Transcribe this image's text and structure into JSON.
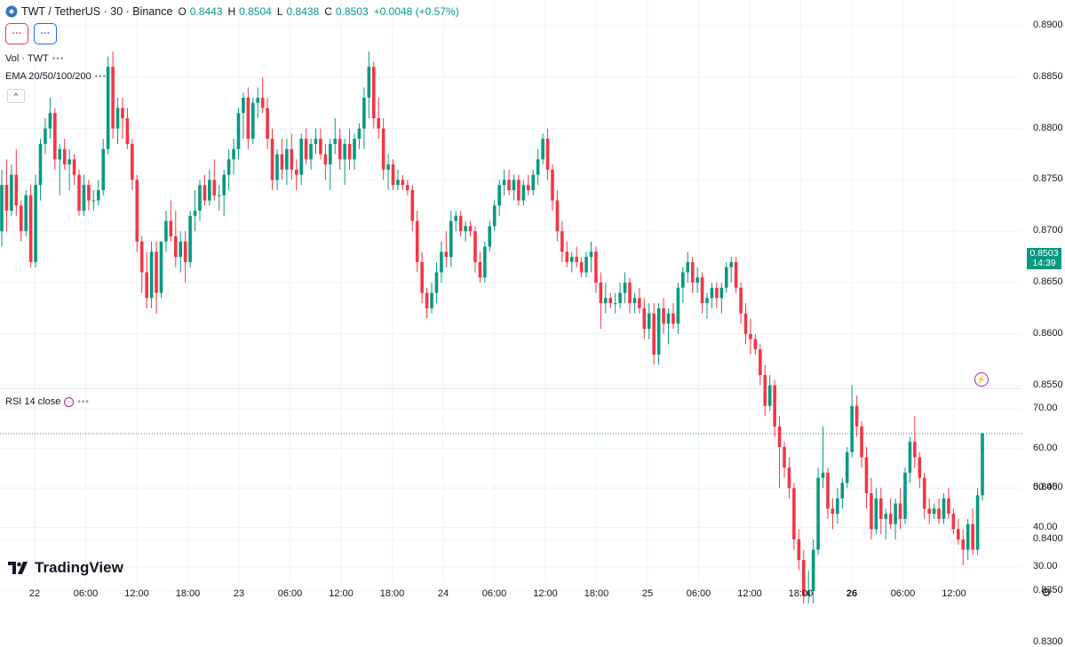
{
  "header": {
    "symbol": "TWT / TetherUS · 30 · Binance",
    "open_label": "O",
    "open": "0.8443",
    "high_label": "H",
    "high": "0.8504",
    "low_label": "L",
    "low": "0.8438",
    "close_label": "C",
    "close": "0.8503",
    "change": "+0.0048 (+0.57%)"
  },
  "buttons": {
    "red_label": "···",
    "blue_label": "···"
  },
  "indicators": {
    "volume": "Vol · TWT",
    "ema": "EMA 20/50/100/200",
    "rsi": "RSI 14 close",
    "collapse": "^"
  },
  "last_price": {
    "value": "0.8503",
    "countdown": "14:39"
  },
  "brand": "TradingView",
  "colors": {
    "up": "#089981",
    "down": "#f23645",
    "grid": "#f0f3fa"
  },
  "price_axis": [
    "0.8900",
    "0.8850",
    "0.8800",
    "0.8750",
    "0.8700",
    "0.8650",
    "0.8600",
    "0.8550",
    "0.8450",
    "0.8400",
    "0.8350",
    "0.8300"
  ],
  "rsi_axis": [
    "70.00",
    "60.00",
    "50.00",
    "40.00",
    "30.00"
  ],
  "time_axis": [
    "22",
    "06:00",
    "12:00",
    "18:00",
    "23",
    "06:00",
    "12:00",
    "18:00",
    "24",
    "06:00",
    "12:00",
    "18:00",
    "25",
    "06:00",
    "12:00",
    "18:00",
    "26",
    "06:00",
    "12:00"
  ],
  "chart_data": {
    "type": "candlestick",
    "interval": "30",
    "y_range": [
      0.8285,
      0.8925
    ],
    "rsi_range": [
      27,
      75
    ],
    "candles": [
      [
        0.87,
        0.876,
        0.8685,
        0.8745
      ],
      [
        0.8745,
        0.877,
        0.87,
        0.872
      ],
      [
        0.872,
        0.8765,
        0.8715,
        0.8755
      ],
      [
        0.8755,
        0.878,
        0.8715,
        0.8725
      ],
      [
        0.8725,
        0.873,
        0.869,
        0.87
      ],
      [
        0.87,
        0.874,
        0.8695,
        0.8735
      ],
      [
        0.8735,
        0.8745,
        0.8665,
        0.867
      ],
      [
        0.867,
        0.8755,
        0.8665,
        0.8745
      ],
      [
        0.8745,
        0.879,
        0.873,
        0.8785
      ],
      [
        0.8785,
        0.881,
        0.8775,
        0.88
      ],
      [
        0.88,
        0.883,
        0.879,
        0.8815
      ],
      [
        0.8815,
        0.882,
        0.876,
        0.877
      ],
      [
        0.877,
        0.8785,
        0.8735,
        0.878
      ],
      [
        0.878,
        0.879,
        0.876,
        0.8765
      ],
      [
        0.8765,
        0.878,
        0.874,
        0.877
      ],
      [
        0.877,
        0.8775,
        0.8745,
        0.8755
      ],
      [
        0.8755,
        0.876,
        0.8715,
        0.872
      ],
      [
        0.872,
        0.8755,
        0.8715,
        0.8745
      ],
      [
        0.8745,
        0.875,
        0.872,
        0.873
      ],
      [
        0.873,
        0.874,
        0.872,
        0.873
      ],
      [
        0.873,
        0.875,
        0.8725,
        0.874
      ],
      [
        0.874,
        0.879,
        0.8735,
        0.878
      ],
      [
        0.878,
        0.887,
        0.8775,
        0.886
      ],
      [
        0.886,
        0.8875,
        0.879,
        0.88
      ],
      [
        0.88,
        0.883,
        0.8785,
        0.882
      ],
      [
        0.882,
        0.883,
        0.879,
        0.881
      ],
      [
        0.881,
        0.882,
        0.878,
        0.8785
      ],
      [
        0.8785,
        0.879,
        0.874,
        0.875
      ],
      [
        0.875,
        0.8755,
        0.868,
        0.869
      ],
      [
        0.869,
        0.8695,
        0.864,
        0.866
      ],
      [
        0.866,
        0.868,
        0.8625,
        0.8635
      ],
      [
        0.8635,
        0.869,
        0.8625,
        0.868
      ],
      [
        0.868,
        0.869,
        0.862,
        0.864
      ],
      [
        0.864,
        0.869,
        0.8635,
        0.869
      ],
      [
        0.869,
        0.872,
        0.868,
        0.871
      ],
      [
        0.871,
        0.873,
        0.869,
        0.8695
      ],
      [
        0.8695,
        0.872,
        0.8665,
        0.8675
      ],
      [
        0.8675,
        0.87,
        0.866,
        0.869
      ],
      [
        0.869,
        0.87,
        0.865,
        0.867
      ],
      [
        0.867,
        0.872,
        0.8665,
        0.8715
      ],
      [
        0.8715,
        0.874,
        0.87,
        0.872
      ],
      [
        0.872,
        0.875,
        0.871,
        0.8745
      ],
      [
        0.8745,
        0.8755,
        0.8725,
        0.873
      ],
      [
        0.873,
        0.876,
        0.8725,
        0.875
      ],
      [
        0.875,
        0.877,
        0.873,
        0.8735
      ],
      [
        0.8735,
        0.8745,
        0.872,
        0.8735
      ],
      [
        0.8735,
        0.876,
        0.8715,
        0.8755
      ],
      [
        0.8755,
        0.878,
        0.874,
        0.877
      ],
      [
        0.877,
        0.879,
        0.8755,
        0.878
      ],
      [
        0.878,
        0.882,
        0.877,
        0.8815
      ],
      [
        0.8815,
        0.8835,
        0.879,
        0.883
      ],
      [
        0.883,
        0.884,
        0.878,
        0.879
      ],
      [
        0.879,
        0.883,
        0.8785,
        0.8825
      ],
      [
        0.8825,
        0.884,
        0.881,
        0.883
      ],
      [
        0.883,
        0.885,
        0.8815,
        0.882
      ],
      [
        0.882,
        0.883,
        0.878,
        0.879
      ],
      [
        0.879,
        0.88,
        0.874,
        0.875
      ],
      [
        0.875,
        0.878,
        0.874,
        0.8775
      ],
      [
        0.8775,
        0.879,
        0.875,
        0.876
      ],
      [
        0.876,
        0.879,
        0.8745,
        0.878
      ],
      [
        0.878,
        0.8795,
        0.875,
        0.876
      ],
      [
        0.876,
        0.877,
        0.874,
        0.8755
      ],
      [
        0.8755,
        0.8795,
        0.8745,
        0.879
      ],
      [
        0.879,
        0.88,
        0.8765,
        0.877
      ],
      [
        0.877,
        0.879,
        0.876,
        0.8785
      ],
      [
        0.8785,
        0.88,
        0.8775,
        0.879
      ],
      [
        0.879,
        0.88,
        0.877,
        0.8775
      ],
      [
        0.8775,
        0.8785,
        0.875,
        0.8765
      ],
      [
        0.8765,
        0.879,
        0.874,
        0.8785
      ],
      [
        0.8785,
        0.881,
        0.8775,
        0.879
      ],
      [
        0.879,
        0.88,
        0.876,
        0.877
      ],
      [
        0.877,
        0.879,
        0.8745,
        0.8785
      ],
      [
        0.8785,
        0.88,
        0.876,
        0.877
      ],
      [
        0.877,
        0.8795,
        0.876,
        0.879
      ],
      [
        0.879,
        0.8805,
        0.878,
        0.88
      ],
      [
        0.88,
        0.884,
        0.878,
        0.883
      ],
      [
        0.883,
        0.8875,
        0.881,
        0.886
      ],
      [
        0.886,
        0.8865,
        0.88,
        0.881
      ],
      [
        0.881,
        0.883,
        0.879,
        0.88
      ],
      [
        0.88,
        0.881,
        0.875,
        0.876
      ],
      [
        0.876,
        0.8775,
        0.874,
        0.8765
      ],
      [
        0.8765,
        0.877,
        0.874,
        0.8745
      ],
      [
        0.8745,
        0.876,
        0.874,
        0.875
      ],
      [
        0.875,
        0.8755,
        0.874,
        0.8745
      ],
      [
        0.8745,
        0.875,
        0.8735,
        0.874
      ],
      [
        0.874,
        0.8745,
        0.87,
        0.871
      ],
      [
        0.871,
        0.872,
        0.866,
        0.867
      ],
      [
        0.867,
        0.868,
        0.863,
        0.864
      ],
      [
        0.864,
        0.8645,
        0.8615,
        0.8625
      ],
      [
        0.8625,
        0.865,
        0.862,
        0.864
      ],
      [
        0.864,
        0.867,
        0.863,
        0.866
      ],
      [
        0.866,
        0.869,
        0.865,
        0.868
      ],
      [
        0.868,
        0.87,
        0.8665,
        0.8675
      ],
      [
        0.8675,
        0.872,
        0.8665,
        0.871
      ],
      [
        0.871,
        0.872,
        0.87,
        0.8715
      ],
      [
        0.8715,
        0.872,
        0.8695,
        0.87
      ],
      [
        0.87,
        0.871,
        0.869,
        0.8705
      ],
      [
        0.8705,
        0.871,
        0.8695,
        0.87
      ],
      [
        0.87,
        0.8705,
        0.866,
        0.867
      ],
      [
        0.867,
        0.868,
        0.865,
        0.8655
      ],
      [
        0.8655,
        0.869,
        0.865,
        0.8685
      ],
      [
        0.8685,
        0.871,
        0.868,
        0.8705
      ],
      [
        0.8705,
        0.873,
        0.87,
        0.8725
      ],
      [
        0.8725,
        0.875,
        0.8715,
        0.8745
      ],
      [
        0.8745,
        0.876,
        0.8735,
        0.875
      ],
      [
        0.875,
        0.876,
        0.8735,
        0.874
      ],
      [
        0.874,
        0.8755,
        0.873,
        0.875
      ],
      [
        0.875,
        0.8755,
        0.8725,
        0.873
      ],
      [
        0.873,
        0.875,
        0.8725,
        0.8745
      ],
      [
        0.8745,
        0.8755,
        0.8735,
        0.874
      ],
      [
        0.874,
        0.876,
        0.8735,
        0.8755
      ],
      [
        0.8755,
        0.878,
        0.8745,
        0.877
      ],
      [
        0.877,
        0.8795,
        0.8765,
        0.879
      ],
      [
        0.879,
        0.88,
        0.875,
        0.876
      ],
      [
        0.876,
        0.8765,
        0.872,
        0.873
      ],
      [
        0.873,
        0.874,
        0.869,
        0.87
      ],
      [
        0.87,
        0.871,
        0.867,
        0.868
      ],
      [
        0.868,
        0.869,
        0.8665,
        0.867
      ],
      [
        0.867,
        0.868,
        0.866,
        0.8675
      ],
      [
        0.8675,
        0.8685,
        0.8665,
        0.867
      ],
      [
        0.867,
        0.8675,
        0.8655,
        0.866
      ],
      [
        0.866,
        0.868,
        0.8655,
        0.8675
      ],
      [
        0.8675,
        0.869,
        0.866,
        0.868
      ],
      [
        0.868,
        0.8685,
        0.864,
        0.865
      ],
      [
        0.865,
        0.866,
        0.8605,
        0.863
      ],
      [
        0.863,
        0.865,
        0.862,
        0.8635
      ],
      [
        0.8635,
        0.864,
        0.8625,
        0.863
      ],
      [
        0.863,
        0.864,
        0.862,
        0.863
      ],
      [
        0.863,
        0.865,
        0.8625,
        0.864
      ],
      [
        0.864,
        0.866,
        0.863,
        0.865
      ],
      [
        0.865,
        0.8655,
        0.862,
        0.863
      ],
      [
        0.863,
        0.864,
        0.862,
        0.8635
      ],
      [
        0.8635,
        0.8645,
        0.862,
        0.8625
      ],
      [
        0.8625,
        0.8635,
        0.8595,
        0.8605
      ],
      [
        0.8605,
        0.863,
        0.8595,
        0.862
      ],
      [
        0.862,
        0.863,
        0.857,
        0.858
      ],
      [
        0.858,
        0.863,
        0.857,
        0.8625
      ],
      [
        0.8625,
        0.8635,
        0.86,
        0.861
      ],
      [
        0.861,
        0.8625,
        0.859,
        0.862
      ],
      [
        0.862,
        0.863,
        0.8605,
        0.861
      ],
      [
        0.861,
        0.865,
        0.86,
        0.8645
      ],
      [
        0.8645,
        0.8665,
        0.863,
        0.866
      ],
      [
        0.866,
        0.868,
        0.865,
        0.867
      ],
      [
        0.867,
        0.8675,
        0.864,
        0.865
      ],
      [
        0.865,
        0.8665,
        0.864,
        0.8655
      ],
      [
        0.8655,
        0.866,
        0.862,
        0.863
      ],
      [
        0.863,
        0.864,
        0.8615,
        0.8635
      ],
      [
        0.8635,
        0.865,
        0.8625,
        0.8645
      ],
      [
        0.8645,
        0.865,
        0.8625,
        0.8635
      ],
      [
        0.8635,
        0.865,
        0.862,
        0.8645
      ],
      [
        0.8645,
        0.867,
        0.864,
        0.8665
      ],
      [
        0.8665,
        0.8675,
        0.865,
        0.867
      ],
      [
        0.867,
        0.8675,
        0.864,
        0.8645
      ],
      [
        0.8645,
        0.865,
        0.861,
        0.862
      ],
      [
        0.862,
        0.863,
        0.859,
        0.86
      ],
      [
        0.86,
        0.8615,
        0.858,
        0.8595
      ],
      [
        0.8595,
        0.86,
        0.858,
        0.8585
      ],
      [
        0.8585,
        0.859,
        0.855,
        0.856
      ],
      [
        0.856,
        0.857,
        0.852,
        0.853
      ],
      [
        0.853,
        0.856,
        0.8525,
        0.855
      ],
      [
        0.855,
        0.8555,
        0.85,
        0.851
      ],
      [
        0.851,
        0.852,
        0.845,
        0.849
      ],
      [
        0.849,
        0.8495,
        0.846,
        0.847
      ],
      [
        0.847,
        0.848,
        0.844,
        0.845
      ],
      [
        0.845,
        0.8455,
        0.839,
        0.84
      ],
      [
        0.84,
        0.841,
        0.837,
        0.838
      ],
      [
        0.838,
        0.839,
        0.833,
        0.8345
      ],
      [
        0.8345,
        0.837,
        0.8335,
        0.835
      ],
      [
        0.835,
        0.84,
        0.8325,
        0.839
      ],
      [
        0.839,
        0.847,
        0.8385,
        0.846
      ],
      [
        0.846,
        0.851,
        0.845,
        0.8465
      ],
      [
        0.8465,
        0.847,
        0.842,
        0.843
      ],
      [
        0.843,
        0.844,
        0.841,
        0.8425
      ],
      [
        0.8425,
        0.845,
        0.8415,
        0.844
      ],
      [
        0.844,
        0.846,
        0.843,
        0.8455
      ],
      [
        0.8455,
        0.849,
        0.845,
        0.8485
      ],
      [
        0.8485,
        0.855,
        0.848,
        0.853
      ],
      [
        0.853,
        0.854,
        0.85,
        0.851
      ],
      [
        0.851,
        0.8515,
        0.847,
        0.848
      ],
      [
        0.848,
        0.849,
        0.843,
        0.8445
      ],
      [
        0.8445,
        0.846,
        0.84,
        0.841
      ],
      [
        0.841,
        0.845,
        0.8405,
        0.844
      ],
      [
        0.844,
        0.845,
        0.8405,
        0.842
      ],
      [
        0.842,
        0.843,
        0.84,
        0.8425
      ],
      [
        0.8425,
        0.844,
        0.841,
        0.8415
      ],
      [
        0.8415,
        0.844,
        0.84,
        0.8435
      ],
      [
        0.8435,
        0.845,
        0.841,
        0.842
      ],
      [
        0.842,
        0.847,
        0.8415,
        0.8465
      ],
      [
        0.8465,
        0.85,
        0.8455,
        0.8495
      ],
      [
        0.8495,
        0.852,
        0.847,
        0.848
      ],
      [
        0.848,
        0.8485,
        0.845,
        0.846
      ],
      [
        0.846,
        0.8465,
        0.842,
        0.843
      ],
      [
        0.843,
        0.844,
        0.8415,
        0.8425
      ],
      [
        0.8425,
        0.8435,
        0.842,
        0.843
      ],
      [
        0.843,
        0.844,
        0.8415,
        0.842
      ],
      [
        0.842,
        0.8445,
        0.8415,
        0.844
      ],
      [
        0.844,
        0.845,
        0.842,
        0.8425
      ],
      [
        0.8425,
        0.843,
        0.8405,
        0.841
      ],
      [
        0.841,
        0.842,
        0.8395,
        0.84
      ],
      [
        0.84,
        0.841,
        0.8375,
        0.839
      ],
      [
        0.839,
        0.842,
        0.838,
        0.8415
      ],
      [
        0.8415,
        0.843,
        0.8385,
        0.839
      ],
      [
        0.839,
        0.845,
        0.8385,
        0.8443
      ],
      [
        0.8443,
        0.8504,
        0.8438,
        0.8503
      ]
    ]
  }
}
